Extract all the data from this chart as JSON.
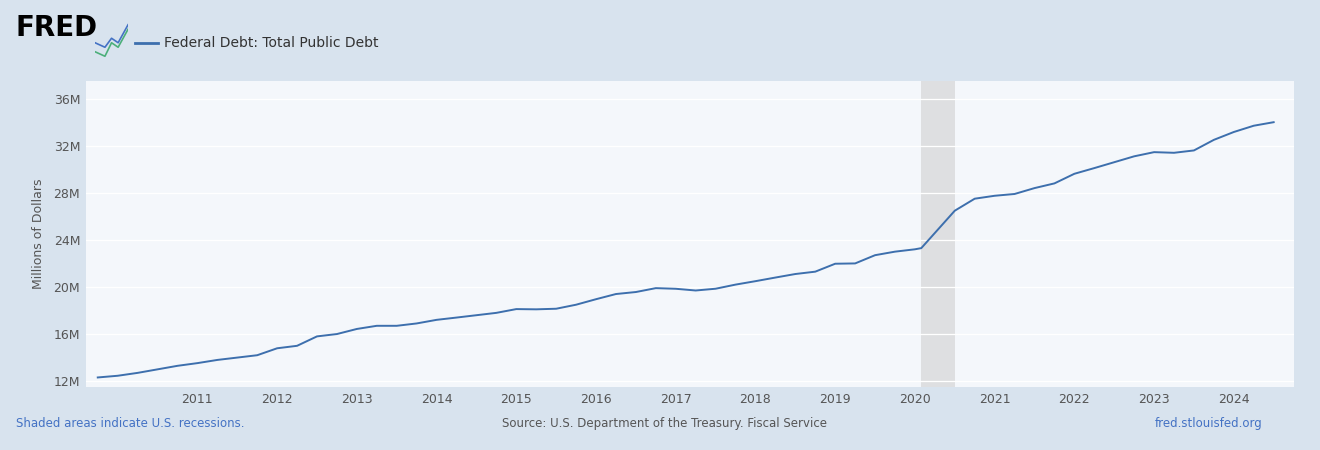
{
  "title": "Federal Debt: Total Public Debt",
  "ylabel": "Millions of Dollars",
  "background_color": "#d8e3ee",
  "plot_bg_color": "#f4f7fb",
  "line_color": "#3d6fad",
  "line_width": 1.4,
  "ylim": [
    11500000,
    37500000
  ],
  "yticks": [
    12000000,
    16000000,
    20000000,
    24000000,
    28000000,
    32000000,
    36000000
  ],
  "ytick_labels": [
    "12M",
    "16M",
    "20M",
    "24M",
    "28M",
    "32M",
    "36M"
  ],
  "xlim_left": 2009.6,
  "xlim_right": 2024.75,
  "xticks": [
    2011,
    2012,
    2013,
    2014,
    2015,
    2016,
    2017,
    2018,
    2019,
    2020,
    2021,
    2022,
    2023,
    2024
  ],
  "recession_band_x0": 2020.08,
  "recession_band_x1": 2020.5,
  "recession_band_color": "#cccccc",
  "recession_band_alpha": 0.55,
  "source_text": "Source: U.S. Department of the Treasury. Fiscal Service",
  "recession_text": "Shaded areas indicate U.S. recessions.",
  "url_text": "fred.stlouisfed.org",
  "recession_text_color": "#4472c4",
  "url_text_color": "#4472c4",
  "footer_text_color": "#555555",
  "years": [
    2009.75,
    2010.0,
    2010.25,
    2010.5,
    2010.75,
    2011.0,
    2011.25,
    2011.5,
    2011.75,
    2012.0,
    2012.25,
    2012.5,
    2012.75,
    2013.0,
    2013.25,
    2013.5,
    2013.75,
    2014.0,
    2014.25,
    2014.5,
    2014.75,
    2015.0,
    2015.25,
    2015.5,
    2015.75,
    2016.0,
    2016.25,
    2016.5,
    2016.75,
    2017.0,
    2017.25,
    2017.5,
    2017.75,
    2018.0,
    2018.25,
    2018.5,
    2018.75,
    2019.0,
    2019.25,
    2019.5,
    2019.75,
    2020.0,
    2020.08,
    2020.5,
    2020.75,
    2021.0,
    2021.25,
    2021.5,
    2021.75,
    2022.0,
    2022.25,
    2022.5,
    2022.75,
    2023.0,
    2023.25,
    2023.5,
    2023.75,
    2024.0,
    2024.25,
    2024.5
  ],
  "values": [
    12311000,
    12455000,
    12700000,
    13000000,
    13300000,
    13529000,
    13800000,
    14000000,
    14200000,
    14790000,
    15000000,
    15800000,
    16000000,
    16432000,
    16700000,
    16700000,
    16900000,
    17206000,
    17400000,
    17600000,
    17800000,
    18120000,
    18100000,
    18150000,
    18492000,
    18960000,
    19400000,
    19570000,
    19900000,
    19846000,
    19700000,
    19850000,
    20200000,
    20492000,
    20800000,
    21100000,
    21300000,
    21974000,
    22000000,
    22700000,
    23000000,
    23200000,
    23300000,
    26480000,
    27500000,
    27748000,
    27900000,
    28400000,
    28800000,
    29616000,
    30100000,
    30600000,
    31100000,
    31455000,
    31400000,
    31600000,
    32500000,
    33167000,
    33700000,
    34000000
  ]
}
